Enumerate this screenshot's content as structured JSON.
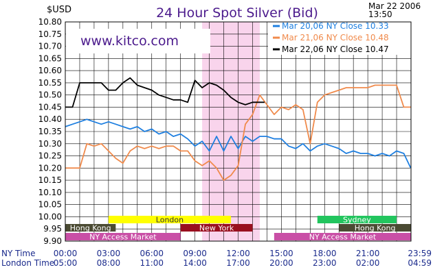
{
  "chart_data": {
    "type": "line",
    "title": "24 Hour Spot Silver (Bid)",
    "ylabel": "$USD",
    "timestamp": {
      "date": "Mar 22 2006",
      "time": "13:50"
    },
    "watermark": "www.kitco.com",
    "ylim": [
      9.9,
      10.8
    ],
    "xlim": [
      0,
      24
    ],
    "y_ticks": [
      "10.80",
      "10.75",
      "10.70",
      "10.65",
      "10.60",
      "10.55",
      "10.50",
      "10.45",
      "10.40",
      "10.35",
      "10.30",
      "10.25",
      "10.20",
      "10.15",
      "10.10",
      "10.05",
      "10.00",
      "9.95",
      "9.90"
    ],
    "x_axis_rows": [
      {
        "label": "NY Time",
        "ticks": [
          "00:00",
          "03:00",
          "06:00",
          "09:00",
          "12:00",
          "15:00",
          "18:00",
          "21:00",
          "23:59"
        ]
      },
      {
        "label": "London Time",
        "ticks": [
          "05:00",
          "08:00",
          "11:00",
          "14:00",
          "17:00",
          "20:00",
          "23:00",
          "02:00",
          "04:59"
        ]
      }
    ],
    "grid": true,
    "legend_position": "top-right",
    "highlight_band": {
      "x": [
        9.5,
        13.5
      ],
      "color": "#f9d4ec"
    },
    "series": [
      {
        "name": "Mar 20,06 NY Close 10.33",
        "color": "#1e7fe0",
        "points": [
          [
            0,
            10.37
          ],
          [
            0.5,
            10.38
          ],
          [
            1,
            10.39
          ],
          [
            1.5,
            10.4
          ],
          [
            2,
            10.39
          ],
          [
            2.5,
            10.38
          ],
          [
            3,
            10.39
          ],
          [
            3.5,
            10.38
          ],
          [
            4,
            10.37
          ],
          [
            4.5,
            10.36
          ],
          [
            5,
            10.37
          ],
          [
            5.5,
            10.35
          ],
          [
            6,
            10.36
          ],
          [
            6.5,
            10.34
          ],
          [
            7,
            10.35
          ],
          [
            7.5,
            10.33
          ],
          [
            8,
            10.34
          ],
          [
            8.5,
            10.32
          ],
          [
            9,
            10.29
          ],
          [
            9.5,
            10.31
          ],
          [
            10,
            10.27
          ],
          [
            10.5,
            10.33
          ],
          [
            11,
            10.27
          ],
          [
            11.5,
            10.33
          ],
          [
            12,
            10.28
          ],
          [
            12.5,
            10.33
          ],
          [
            13,
            10.31
          ],
          [
            13.5,
            10.33
          ],
          [
            14,
            10.33
          ],
          [
            14.5,
            10.32
          ],
          [
            15,
            10.32
          ],
          [
            15.5,
            10.29
          ],
          [
            16,
            10.28
          ],
          [
            16.5,
            10.3
          ],
          [
            17,
            10.27
          ],
          [
            17.5,
            10.29
          ],
          [
            18,
            10.3
          ],
          [
            18.5,
            10.29
          ],
          [
            19,
            10.28
          ],
          [
            19.5,
            10.26
          ],
          [
            20,
            10.27
          ],
          [
            20.5,
            10.26
          ],
          [
            21,
            10.26
          ],
          [
            21.5,
            10.25
          ],
          [
            22,
            10.26
          ],
          [
            22.5,
            10.25
          ],
          [
            23,
            10.27
          ],
          [
            23.5,
            10.26
          ],
          [
            23.98,
            10.2
          ]
        ]
      },
      {
        "name": "Mar 21,06 NY Close 10.48",
        "color": "#f08a4b",
        "points": [
          [
            0,
            10.2
          ],
          [
            0.5,
            10.2
          ],
          [
            1,
            10.2
          ],
          [
            1.5,
            10.3
          ],
          [
            2,
            10.29
          ],
          [
            2.5,
            10.3
          ],
          [
            3,
            10.27
          ],
          [
            3.5,
            10.24
          ],
          [
            4,
            10.22
          ],
          [
            4.5,
            10.27
          ],
          [
            5,
            10.29
          ],
          [
            5.5,
            10.28
          ],
          [
            6,
            10.29
          ],
          [
            6.5,
            10.28
          ],
          [
            7,
            10.29
          ],
          [
            7.5,
            10.29
          ],
          [
            8,
            10.27
          ],
          [
            8.5,
            10.27
          ],
          [
            9,
            10.23
          ],
          [
            9.5,
            10.21
          ],
          [
            10,
            10.23
          ],
          [
            10.5,
            10.2
          ],
          [
            11,
            10.15
          ],
          [
            11.5,
            10.17
          ],
          [
            12,
            10.21
          ],
          [
            12.5,
            10.38
          ],
          [
            13,
            10.42
          ],
          [
            13.5,
            10.5
          ],
          [
            14,
            10.46
          ],
          [
            14.5,
            10.42
          ],
          [
            15,
            10.45
          ],
          [
            15.5,
            10.44
          ],
          [
            16,
            10.46
          ],
          [
            16.5,
            10.44
          ],
          [
            17,
            10.3
          ],
          [
            17.5,
            10.47
          ],
          [
            18,
            10.5
          ],
          [
            18.5,
            10.51
          ],
          [
            19,
            10.52
          ],
          [
            19.5,
            10.53
          ],
          [
            20,
            10.53
          ],
          [
            20.5,
            10.53
          ],
          [
            21,
            10.53
          ],
          [
            21.5,
            10.54
          ],
          [
            22,
            10.54
          ],
          [
            22.5,
            10.54
          ],
          [
            23,
            10.54
          ],
          [
            23.5,
            10.45
          ],
          [
            23.98,
            10.45
          ]
        ]
      },
      {
        "name": "Mar 22,06 NY Close 10.47",
        "color": "#000000",
        "points": [
          [
            0,
            10.45
          ],
          [
            0.5,
            10.45
          ],
          [
            1,
            10.55
          ],
          [
            1.5,
            10.55
          ],
          [
            2,
            10.55
          ],
          [
            2.5,
            10.55
          ],
          [
            3,
            10.52
          ],
          [
            3.5,
            10.52
          ],
          [
            4,
            10.55
          ],
          [
            4.5,
            10.57
          ],
          [
            5,
            10.54
          ],
          [
            5.5,
            10.53
          ],
          [
            6,
            10.52
          ],
          [
            6.5,
            10.5
          ],
          [
            7,
            10.49
          ],
          [
            7.5,
            10.48
          ],
          [
            8,
            10.48
          ],
          [
            8.5,
            10.47
          ],
          [
            9,
            10.56
          ],
          [
            9.5,
            10.53
          ],
          [
            10,
            10.55
          ],
          [
            10.5,
            10.54
          ],
          [
            11,
            10.52
          ],
          [
            11.5,
            10.49
          ],
          [
            12,
            10.47
          ],
          [
            12.5,
            10.46
          ],
          [
            13,
            10.47
          ],
          [
            13.5,
            10.47
          ],
          [
            13.83,
            10.47
          ]
        ]
      }
    ],
    "market_bars": [
      {
        "label": "London",
        "row": 1,
        "x": [
          3,
          11.5
        ],
        "color": "#ffff00",
        "text_color": "#333333"
      },
      {
        "label": "Sydney",
        "row": 1,
        "x": [
          17.5,
          23
        ],
        "color": "#22c55e",
        "text_color": "#ffffff"
      },
      {
        "label": "Hong Kong",
        "row": 2,
        "x": [
          0,
          3.5
        ],
        "color": "#4b4b33",
        "text_color": "#ffffff"
      },
      {
        "label": "New York",
        "row": 2,
        "x": [
          8,
          13
        ],
        "color": "#990f1f",
        "text_color": "#ffffff"
      },
      {
        "label": "Hong Kong",
        "row": 2,
        "x": [
          19,
          24
        ],
        "color": "#4b4b33",
        "text_color": "#ffffff"
      },
      {
        "label": "NY Access Market",
        "row": 3,
        "x": [
          0,
          8
        ],
        "color": "#c94fa6",
        "text_color": "#ffffff"
      },
      {
        "label": "NY Access Market",
        "row": 3,
        "x": [
          14.5,
          24
        ],
        "color": "#c94fa6",
        "text_color": "#ffffff"
      }
    ]
  }
}
